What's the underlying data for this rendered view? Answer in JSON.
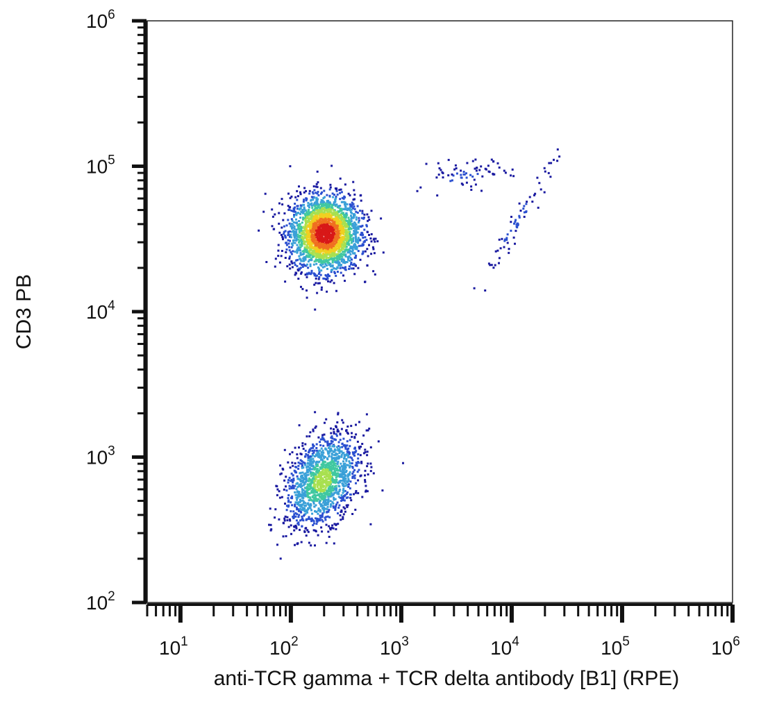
{
  "chart_data": {
    "type": "scatter",
    "subtype": "flow-cytometry density dot plot",
    "xlabel": "anti-TCR gamma + TCR delta antibody [B1] (RPE)",
    "ylabel": "CD3 PB",
    "xscale": "log",
    "yscale": "log",
    "xlim": [
      5,
      1000000
    ],
    "ylim": [
      100,
      1000000
    ],
    "x_ticks": [
      {
        "base": "10",
        "exp": "1",
        "value": 10
      },
      {
        "base": "10",
        "exp": "2",
        "value": 100
      },
      {
        "base": "10",
        "exp": "3",
        "value": 1000
      },
      {
        "base": "10",
        "exp": "4",
        "value": 10000
      },
      {
        "base": "10",
        "exp": "5",
        "value": 100000
      },
      {
        "base": "10",
        "exp": "6",
        "value": 1000000
      }
    ],
    "y_ticks": [
      {
        "base": "10",
        "exp": "2",
        "value": 100
      },
      {
        "base": "10",
        "exp": "3",
        "value": 1000
      },
      {
        "base": "10",
        "exp": "4",
        "value": 10000
      },
      {
        "base": "10",
        "exp": "5",
        "value": 100000
      },
      {
        "base": "10",
        "exp": "6",
        "value": 1000000
      }
    ],
    "grid": false,
    "legend": "none",
    "density_colors": [
      "#1a1aa0",
      "#2a4fd0",
      "#3aa0d8",
      "#40c8a0",
      "#a8e050",
      "#f0d020",
      "#f07020",
      "#d81818"
    ],
    "populations": [
      {
        "center_x": 200,
        "center_y": 35000,
        "spread_log_x": 0.16,
        "spread_log_y": 0.13,
        "density": "high"
      },
      {
        "center_x": 190,
        "center_y": 700,
        "spread_log_x": 0.17,
        "spread_log_y": 0.15,
        "density": "medium"
      },
      {
        "center_x": 3500,
        "center_y": 85000,
        "spread_log_x": 0.22,
        "spread_log_y": 0.05,
        "density": "sparse"
      },
      {
        "center_x": 11000,
        "center_y": 42000,
        "spread_log_x": 0.18,
        "spread_log_y": 0.15,
        "density": "sparse"
      }
    ]
  }
}
